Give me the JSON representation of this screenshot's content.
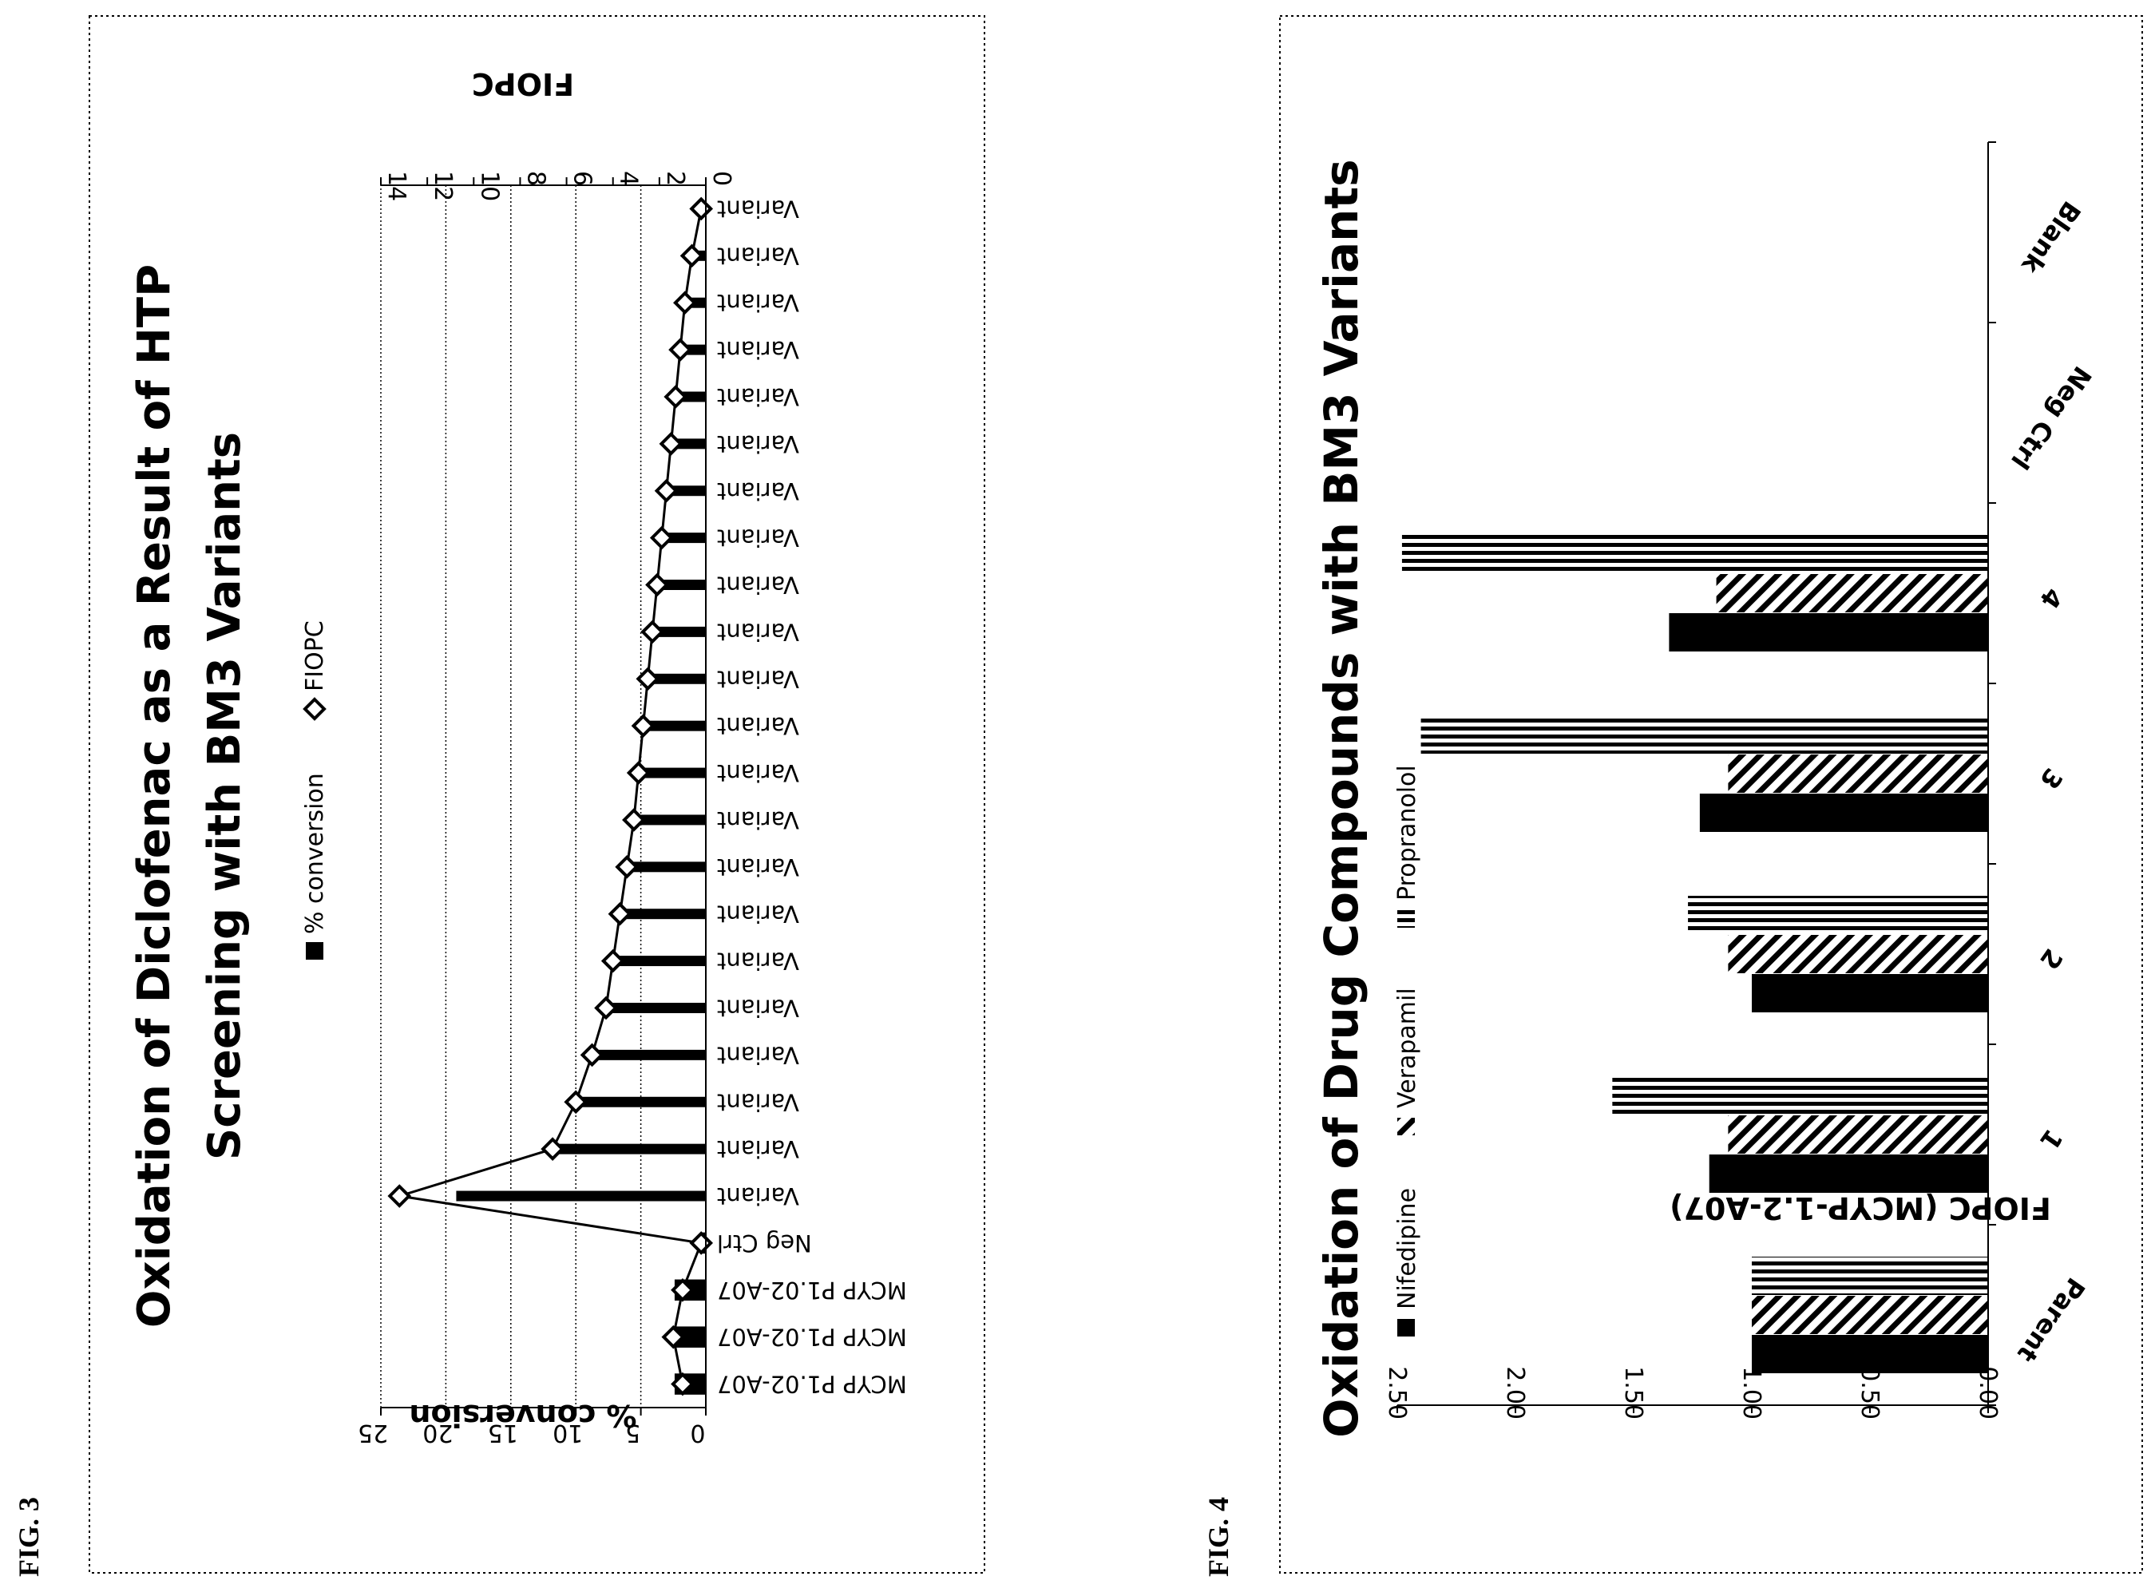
{
  "figures": [
    {
      "label": "FIG. 3"
    },
    {
      "label": "FIG. 4"
    }
  ],
  "chart_data": [
    {
      "type": "bar",
      "title": "Oxidation of Diclofenac as a Result of HTP Screening with BM3 Variants",
      "ylabel": "% conversion",
      "y2label": "FIOPC",
      "ylim": [
        0,
        25
      ],
      "yticks": [
        "0",
        "5",
        "10",
        "15",
        "20",
        "25"
      ],
      "y2lim": [
        0,
        14
      ],
      "y2ticks": [
        "0",
        "2",
        "4",
        "6",
        "8",
        "10",
        "12",
        "14"
      ],
      "legend": [
        {
          "name": "% conversion",
          "marker": "square"
        },
        {
          "name": "FIOPC",
          "marker": "diamond"
        }
      ],
      "legend_position": "top",
      "grid": true,
      "categories": [
        "MCYP P1.02-A07",
        "MCYP P1.02-A07",
        "MCYP P1.02-A07",
        "Neg Ctrl",
        "Variant",
        "Variant",
        "Variant",
        "Variant",
        "Variant",
        "Variant",
        "Variant",
        "Variant",
        "Variant",
        "Variant",
        "Variant",
        "Variant",
        "Variant",
        "Variant",
        "Variant",
        "Variant",
        "Variant",
        "Variant",
        "Variant",
        "Variant",
        "Variant",
        "Variant"
      ],
      "series": [
        {
          "name": "% conversion",
          "values": [
            2.4,
            2.6,
            2.4,
            0.3,
            19.2,
            11.8,
            9.8,
            8.8,
            7.8,
            7.3,
            6.7,
            6.2,
            5.7,
            5.2,
            4.8,
            4.5,
            4.1,
            3.8,
            3.5,
            3.2,
            2.9,
            2.6,
            2.3,
            1.9,
            1.4,
            0.6
          ]
        },
        {
          "name": "FIOPC",
          "values": [
            1.0,
            1.4,
            1.0,
            0.2,
            13.2,
            6.6,
            5.6,
            4.9,
            4.3,
            4.0,
            3.7,
            3.4,
            3.1,
            2.9,
            2.7,
            2.5,
            2.3,
            2.1,
            1.9,
            1.7,
            1.5,
            1.3,
            1.1,
            0.9,
            0.6,
            0.2
          ]
        }
      ]
    },
    {
      "type": "bar",
      "title": "Oxidation of Drug Compounds with BM3 Variants",
      "ylabel": "FIOPC (MCYP-1.2-A07)",
      "ylim": [
        0,
        2.5
      ],
      "yticks": [
        "0.00",
        "0.50",
        "1.00",
        "1.50",
        "2.00",
        "2.50"
      ],
      "legend": [
        {
          "name": "Nifedipine",
          "marker": "solid"
        },
        {
          "name": "Verapamil",
          "marker": "diagonal"
        },
        {
          "name": "Propranolol",
          "marker": "vertical"
        }
      ],
      "legend_position": "top",
      "grid": false,
      "categories": [
        "Parent",
        "1",
        "2",
        "3",
        "4",
        "Neg Ctrl",
        "Blank"
      ],
      "series": [
        {
          "name": "Nifedipine",
          "values": [
            1.0,
            1.18,
            1.0,
            1.22,
            1.35,
            0,
            0
          ]
        },
        {
          "name": "Verapamil",
          "values": [
            1.0,
            1.1,
            1.1,
            1.1,
            1.15,
            0,
            0
          ]
        },
        {
          "name": "Propranolol",
          "values": [
            1.0,
            1.59,
            1.27,
            2.4,
            2.48,
            0,
            0
          ]
        }
      ]
    }
  ]
}
